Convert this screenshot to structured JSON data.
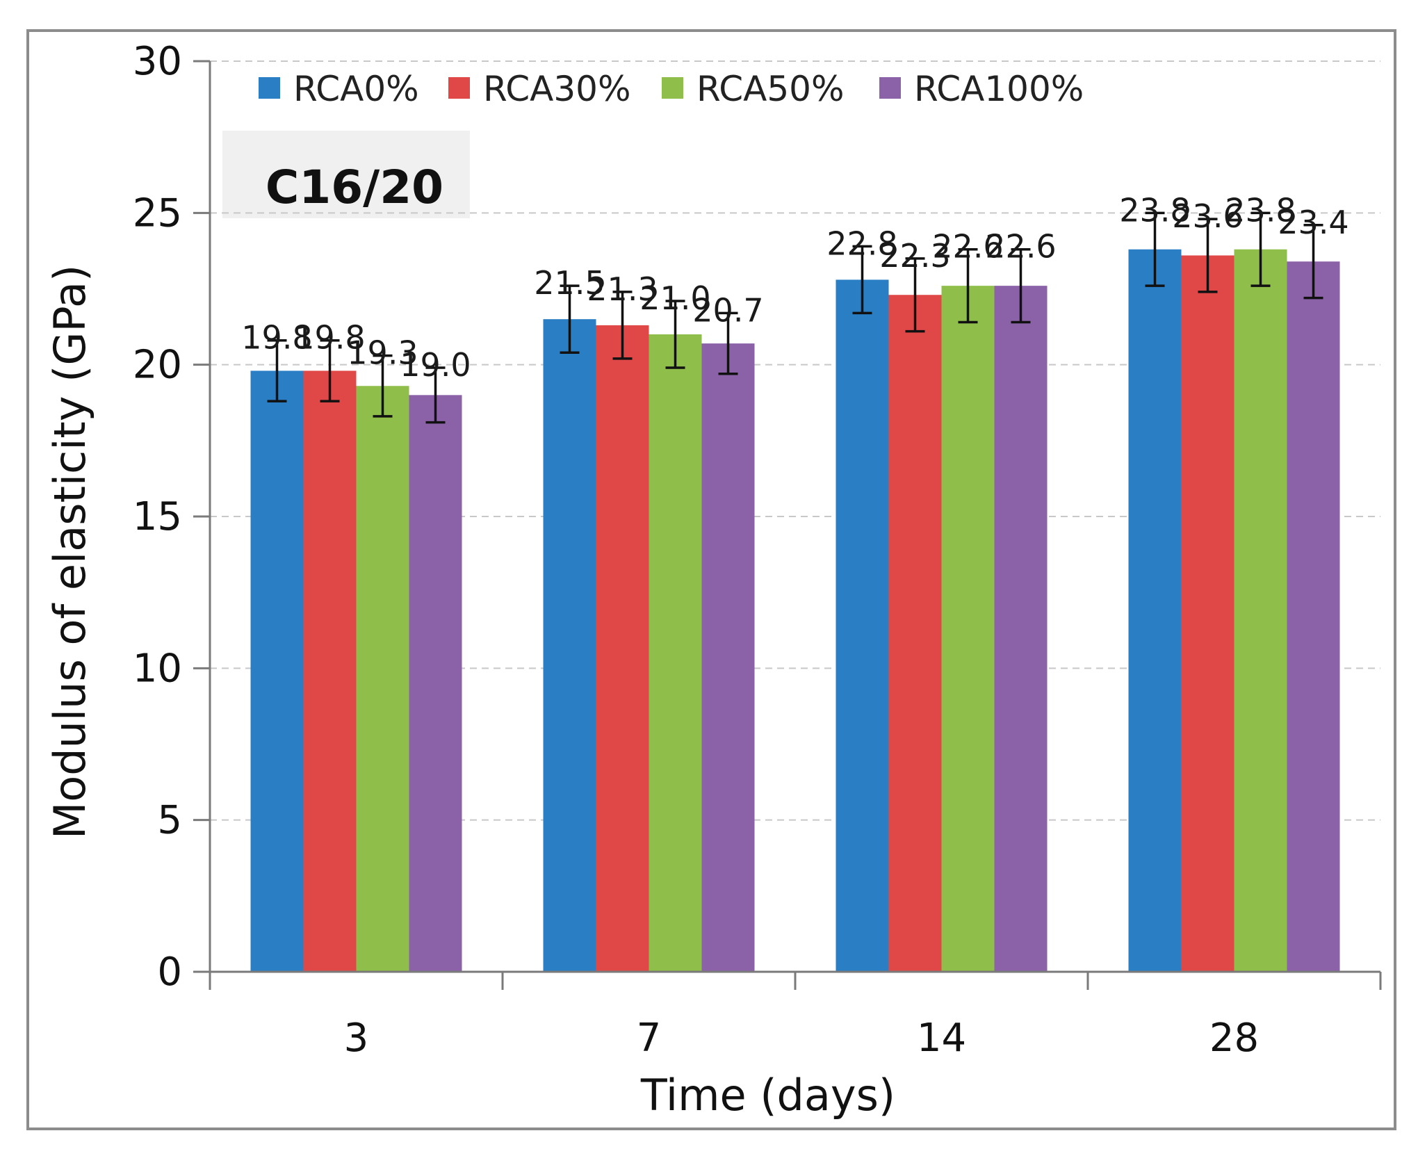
{
  "chart_data": {
    "type": "bar",
    "title": "",
    "annotation": "C16/20",
    "xlabel": "Time (days)",
    "ylabel": "Modulus of elasticity (GPa)",
    "categories": [
      "3",
      "7",
      "14",
      "28"
    ],
    "ylim": [
      0,
      30
    ],
    "yticks": [
      "0",
      "5",
      "10",
      "15",
      "20",
      "25",
      "30"
    ],
    "grid": true,
    "legend_position": "top",
    "series": [
      {
        "name": "RCA0%",
        "color": "#2a7fc4",
        "values": [
          19.8,
          21.5,
          22.8,
          23.8
        ],
        "errors": [
          1.0,
          1.1,
          1.1,
          1.2
        ],
        "labels": [
          "19.8",
          "21.5",
          "22.8",
          "23.8"
        ]
      },
      {
        "name": "RCA30%",
        "color": "#e04848",
        "values": [
          19.8,
          21.3,
          22.3,
          23.6
        ],
        "errors": [
          1.0,
          1.1,
          1.2,
          1.2
        ],
        "labels": [
          "19.8",
          "21.3",
          "22.3",
          "23.6"
        ]
      },
      {
        "name": "RCA50%",
        "color": "#8fbf4a",
        "values": [
          19.3,
          21.0,
          22.6,
          23.8
        ],
        "errors": [
          1.0,
          1.1,
          1.2,
          1.2
        ],
        "labels": [
          "19.3",
          "21.0",
          "22.6",
          "23.8"
        ]
      },
      {
        "name": "RCA100%",
        "color": "#8b62a8",
        "values": [
          19.0,
          20.7,
          22.6,
          23.4
        ],
        "errors": [
          0.9,
          1.0,
          1.2,
          1.2
        ],
        "labels": [
          "19.0",
          "20.7",
          "22.6",
          "23.4"
        ]
      }
    ]
  }
}
